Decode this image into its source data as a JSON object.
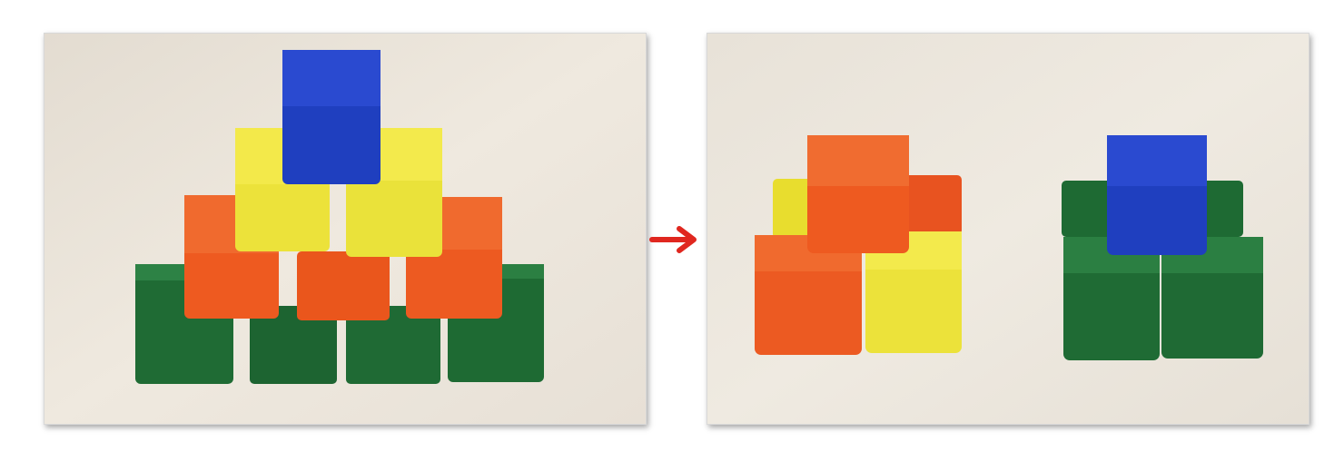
{
  "figure": {
    "before_photo": {
      "description_icon": "block-pyramid-photo"
    },
    "transition": {
      "icon": "right-arrow-icon",
      "color": "#e0271f"
    },
    "after_photo": {
      "description_icon": "block-sorted-groups-photo"
    }
  },
  "colors": {
    "background": "#ebe5dc",
    "blue": "#1f3fbf",
    "yellow": "#efe43a",
    "orange": "#ee5a20",
    "green": "#1f6b34",
    "arrow": "#e0271f"
  },
  "scene": {
    "before_stack": {
      "rows_bottom_to_top": [
        {
          "color": "green",
          "count": 4
        },
        {
          "color": "orange",
          "count": 3
        },
        {
          "color": "yellow",
          "count": 2
        },
        {
          "color": "blue",
          "count": 1
        }
      ]
    },
    "after_groups": [
      {
        "name": "orange-yellow-group",
        "blocks": [
          "orange",
          "orange",
          "orange",
          "yellow",
          "yellow"
        ]
      },
      {
        "name": "green-blue-group",
        "blocks": [
          "green",
          "green",
          "green",
          "green",
          "blue"
        ]
      }
    ]
  }
}
